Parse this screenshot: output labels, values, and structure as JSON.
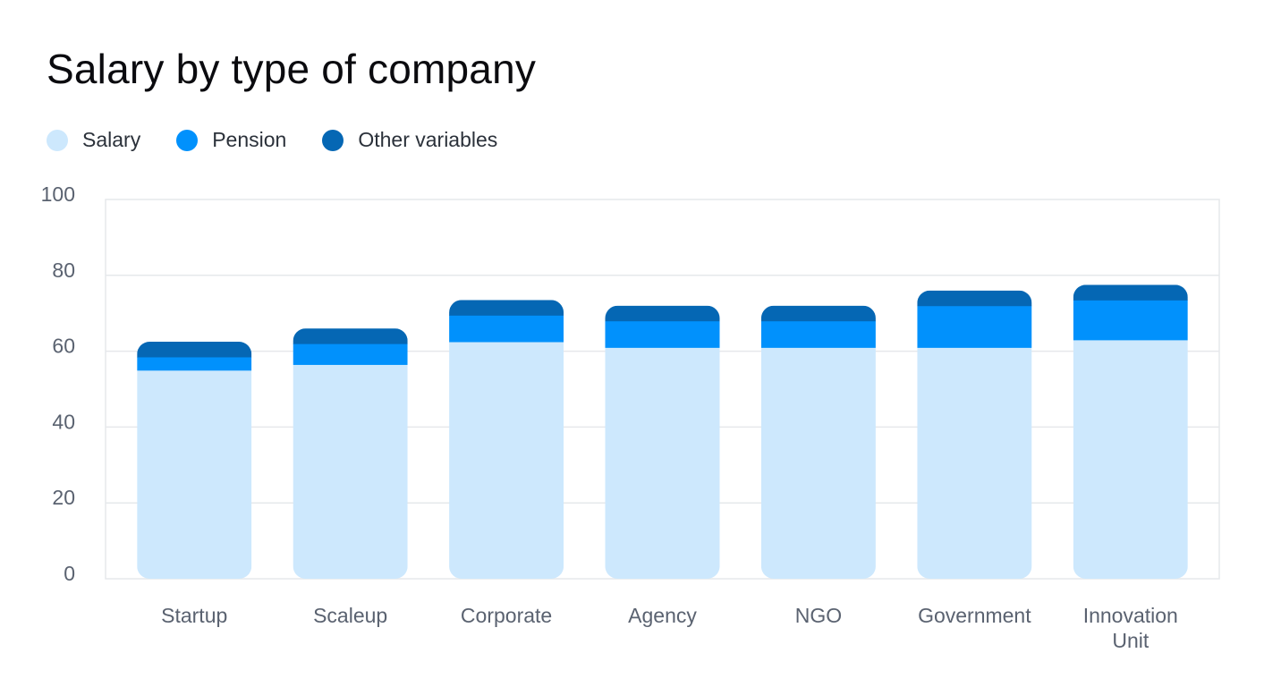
{
  "chart_data": {
    "type": "bar",
    "stacked": true,
    "title": "Salary by type of company",
    "xlabel": "",
    "ylabel": "",
    "ylim": [
      0,
      100
    ],
    "yticks": [
      0,
      20,
      40,
      60,
      80,
      100
    ],
    "grid": true,
    "legend_position": "top-left",
    "categories": [
      "Startup",
      "Scaleup",
      "Corporate",
      "Agency",
      "NGO",
      "Government",
      "Innovation Unit"
    ],
    "category_lines": [
      [
        "Startup"
      ],
      [
        "Scaleup"
      ],
      [
        "Corporate"
      ],
      [
        "Agency"
      ],
      [
        "NGO"
      ],
      [
        "Government"
      ],
      [
        "Innovation",
        "Unit"
      ]
    ],
    "series": [
      {
        "name": "Salary",
        "color": "#cde8fd",
        "values": [
          55,
          56.5,
          62.5,
          61,
          61,
          61,
          63
        ]
      },
      {
        "name": "Pension",
        "color": "#0191fc",
        "values": [
          3.5,
          5.5,
          7,
          7,
          7,
          11,
          10.5
        ]
      },
      {
        "name": "Other variables",
        "color": "#0567b4",
        "values": [
          4,
          4,
          4,
          4,
          4,
          4,
          4
        ]
      }
    ]
  }
}
